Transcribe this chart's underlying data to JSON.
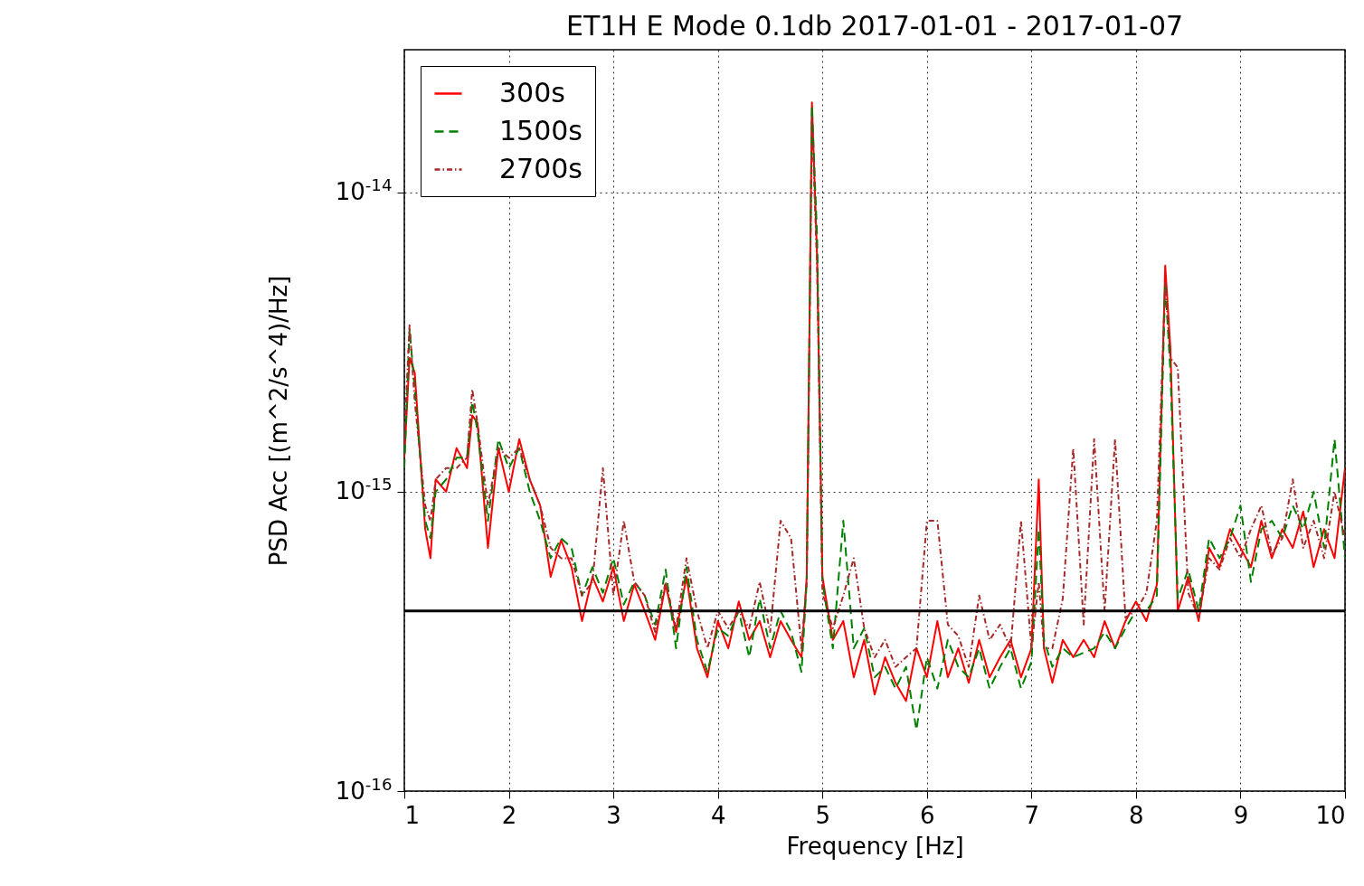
{
  "chart_data": {
    "type": "line",
    "title": "ET1H E Mode 0.1db 2017-01-01 - 2017-01-07",
    "xlabel": "Frequency [Hz]",
    "ylabel": "PSD Acc [(m^2/s^4)/Hz]",
    "x": [
      1.0,
      1.05,
      1.1,
      1.2,
      1.25,
      1.3,
      1.4,
      1.5,
      1.6,
      1.65,
      1.7,
      1.8,
      1.9,
      2.0,
      2.1,
      2.2,
      2.3,
      2.4,
      2.5,
      2.6,
      2.7,
      2.8,
      2.9,
      3.0,
      3.1,
      3.2,
      3.3,
      3.4,
      3.5,
      3.6,
      3.7,
      3.8,
      3.9,
      4.0,
      4.1,
      4.2,
      4.3,
      4.4,
      4.5,
      4.6,
      4.7,
      4.8,
      4.85,
      4.9,
      4.95,
      5.0,
      5.1,
      5.2,
      5.3,
      5.4,
      5.5,
      5.6,
      5.7,
      5.8,
      5.9,
      6.0,
      6.1,
      6.2,
      6.3,
      6.4,
      6.5,
      6.6,
      6.7,
      6.8,
      6.9,
      7.0,
      7.07,
      7.12,
      7.2,
      7.3,
      7.4,
      7.5,
      7.6,
      7.7,
      7.8,
      7.9,
      8.0,
      8.1,
      8.2,
      8.28,
      8.33,
      8.4,
      8.5,
      8.6,
      8.7,
      8.8,
      8.9,
      9.0,
      9.1,
      9.2,
      9.3,
      9.4,
      9.5,
      9.6,
      9.7,
      9.8,
      9.9,
      10.0
    ],
    "series": [
      {
        "name": "300s",
        "color": "#ff0000",
        "line_style": "solid",
        "values": [
          1.3e-15,
          2.8e-15,
          2.5e-15,
          7.5e-16,
          6e-16,
          1.1e-15,
          1e-15,
          1.4e-15,
          1.2e-15,
          1.8e-15,
          1.7e-15,
          6.5e-16,
          1.4e-15,
          1e-15,
          1.5e-15,
          1.1e-15,
          9e-16,
          5.2e-16,
          6.9e-16,
          5.6e-16,
          3.7e-16,
          5.2e-16,
          4.3e-16,
          5.6e-16,
          3.7e-16,
          4.9e-16,
          4e-16,
          3.2e-16,
          4.9e-16,
          3.4e-16,
          5.2e-16,
          3e-16,
          2.4e-16,
          3.7e-16,
          3e-16,
          4.3e-16,
          3.2e-16,
          3.7e-16,
          2.8e-16,
          3.7e-16,
          3.2e-16,
          2.8e-16,
          5.2e-16,
          2e-14,
          6e-15,
          5.2e-16,
          3.2e-16,
          3.7e-16,
          2.4e-16,
          3.2e-16,
          2.1e-16,
          2.8e-16,
          2.3e-16,
          2e-16,
          3e-16,
          2.4e-16,
          3.7e-16,
          2.4e-16,
          3e-16,
          2.3e-16,
          3.2e-16,
          2.4e-16,
          2.8e-16,
          3.2e-16,
          2.4e-16,
          3e-16,
          1.1e-15,
          3e-16,
          2.3e-16,
          3.2e-16,
          2.8e-16,
          3.2e-16,
          2.8e-16,
          3.7e-16,
          3e-16,
          3.7e-16,
          4.3e-16,
          3.7e-16,
          4.9e-16,
          5.7e-15,
          3e-15,
          4e-16,
          5.2e-16,
          3.7e-16,
          6.5e-16,
          5.6e-16,
          7.5e-16,
          6.5e-16,
          5.6e-16,
          8e-16,
          6e-16,
          7.5e-16,
          6.5e-16,
          8.6e-16,
          5.6e-16,
          7.5e-16,
          6e-16,
          1.2e-15
        ]
      },
      {
        "name": "1500s",
        "color": "#008000",
        "line_style": "dashed",
        "values": [
          1.2e-15,
          3.5e-15,
          2.2e-15,
          8e-16,
          7e-16,
          1e-15,
          1.1e-15,
          1.3e-15,
          1.3e-15,
          2e-15,
          1.6e-15,
          8e-16,
          1.5e-15,
          1.2e-15,
          1.4e-15,
          1e-15,
          8e-16,
          6e-16,
          7e-16,
          6.5e-16,
          4.5e-16,
          5.6e-16,
          4.6e-16,
          6e-16,
          4.2e-16,
          5e-16,
          4.5e-16,
          3.6e-16,
          5.5e-16,
          3e-16,
          5.6e-16,
          3.2e-16,
          2.5e-16,
          3.5e-16,
          3.3e-16,
          4e-16,
          2.8e-16,
          4.4e-16,
          3e-16,
          4e-16,
          3.4e-16,
          2.5e-16,
          5e-16,
          1.95e-14,
          7e-15,
          5e-16,
          3e-16,
          8e-16,
          3e-16,
          3.5e-16,
          2.4e-16,
          2.6e-16,
          2.2e-16,
          2.6e-16,
          1.6e-16,
          2.8e-16,
          2.2e-16,
          3.2e-16,
          2.6e-16,
          2.4e-16,
          3e-16,
          2.2e-16,
          2.6e-16,
          3e-16,
          2.2e-16,
          2.7e-16,
          7.5e-16,
          3.2e-16,
          2.6e-16,
          3e-16,
          2.8e-16,
          2.9e-16,
          3e-16,
          3.4e-16,
          3e-16,
          3.5e-16,
          4e-16,
          4e-16,
          4.5e-16,
          5e-15,
          2.5e-15,
          4.4e-16,
          5.5e-16,
          4e-16,
          7e-16,
          6e-16,
          7e-16,
          9e-16,
          5e-16,
          7.5e-16,
          8e-16,
          7e-16,
          9e-16,
          7.5e-16,
          1e-15,
          6.5e-16,
          1.5e-15,
          6e-16
        ]
      },
      {
        "name": "2700s",
        "color": "#a52a2a",
        "line_style": "dotted",
        "values": [
          1.5e-15,
          3.6e-15,
          2e-15,
          9e-16,
          8e-16,
          1.1e-15,
          1.2e-15,
          1.2e-15,
          1.3e-15,
          2.2e-15,
          1.7e-15,
          9e-16,
          1.4e-15,
          1.3e-15,
          1.4e-15,
          1.1e-15,
          9e-16,
          6.5e-16,
          6e-16,
          6e-16,
          4.5e-16,
          5e-16,
          1.2e-15,
          4.5e-16,
          8e-16,
          5e-16,
          4.5e-16,
          3.4e-16,
          5e-16,
          3.5e-16,
          6e-16,
          4e-16,
          3e-16,
          4e-16,
          3.5e-16,
          4e-16,
          3.5e-16,
          5e-16,
          3.4e-16,
          8e-16,
          7e-16,
          3e-16,
          5e-16,
          1.8e-14,
          5.5e-15,
          4.6e-16,
          3.5e-16,
          4.5e-16,
          6e-16,
          3.5e-16,
          2.8e-16,
          3.2e-16,
          2.6e-16,
          2.8e-16,
          3e-16,
          8e-16,
          8e-16,
          3.6e-16,
          3.3e-16,
          2.6e-16,
          4.5e-16,
          3.2e-16,
          3.6e-16,
          3e-16,
          8e-16,
          3e-16,
          5e-16,
          3e-16,
          3e-16,
          4.4e-16,
          1.4e-15,
          3.6e-16,
          1.5e-15,
          4e-16,
          1.5e-15,
          3.8e-16,
          4e-16,
          4.6e-16,
          8e-16,
          5e-15,
          2.8e-15,
          2.6e-15,
          4.6e-16,
          3.8e-16,
          6e-16,
          5.5e-16,
          7e-16,
          6e-16,
          7.5e-16,
          9e-16,
          6.2e-16,
          7e-16,
          1.1e-15,
          6.5e-16,
          8e-16,
          6e-16,
          1e-15,
          7e-16
        ]
      }
    ],
    "xlim": [
      1,
      10
    ],
    "ylim": [
      1e-16,
      3e-14
    ],
    "xticks": [
      1,
      2,
      3,
      4,
      5,
      6,
      7,
      8,
      9,
      10
    ],
    "yticks": [
      {
        "value": 1e-16,
        "label": "10$^{-16}$"
      },
      {
        "value": 1e-15,
        "label": "10$^{-15}$"
      },
      {
        "value": 1e-14,
        "label": "10$^{-14}$"
      }
    ],
    "log": "y",
    "grid": true,
    "legend": "top left",
    "ref_lines": [
      {
        "axis": "y",
        "value": 4e-16,
        "color": "#000000"
      }
    ]
  }
}
